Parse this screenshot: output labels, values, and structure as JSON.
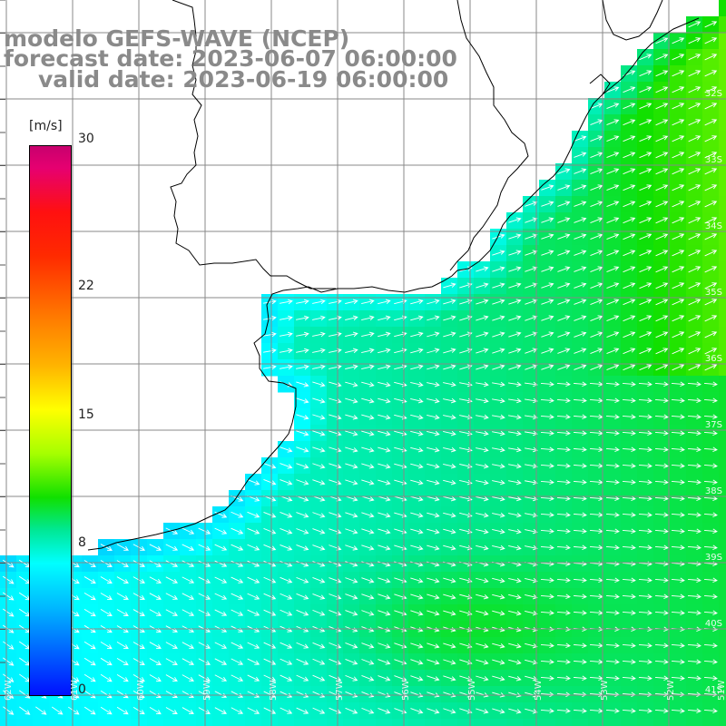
{
  "header": {
    "line1": "modelo GEFS-WAVE (NCEP)",
    "line2": "forecast date: 2023-06-07 06:00:00",
    "line3": "valid date: 2023-06-19 06:00:00"
  },
  "colorbar": {
    "unit": "[m/s]",
    "ticks": [
      {
        "value": 30,
        "label": "30"
      },
      {
        "value": 22,
        "label": "22"
      },
      {
        "value": 15,
        "label": "15"
      },
      {
        "value": 8,
        "label": "8"
      },
      {
        "value": 0,
        "label": "0"
      }
    ],
    "range": [
      0,
      30
    ]
  },
  "map": {
    "variable": "wind speed and direction",
    "lat_labels": [
      "32S",
      "33S",
      "34S",
      "35S",
      "36S",
      "37S",
      "38S",
      "39S",
      "40S",
      "41S"
    ],
    "lon_labels": [
      "62W",
      "61W",
      "60W",
      "59W",
      "58W",
      "57W",
      "56W",
      "55W",
      "54W",
      "53W",
      "52W",
      "51W"
    ],
    "land_color": "#ffffff",
    "grid_color": "#808080",
    "coast_color": "#000000",
    "arrow_color": "#ffffff",
    "arrow_direction": "toward east-southeast in the south, toward east-northeast in the north"
  }
}
